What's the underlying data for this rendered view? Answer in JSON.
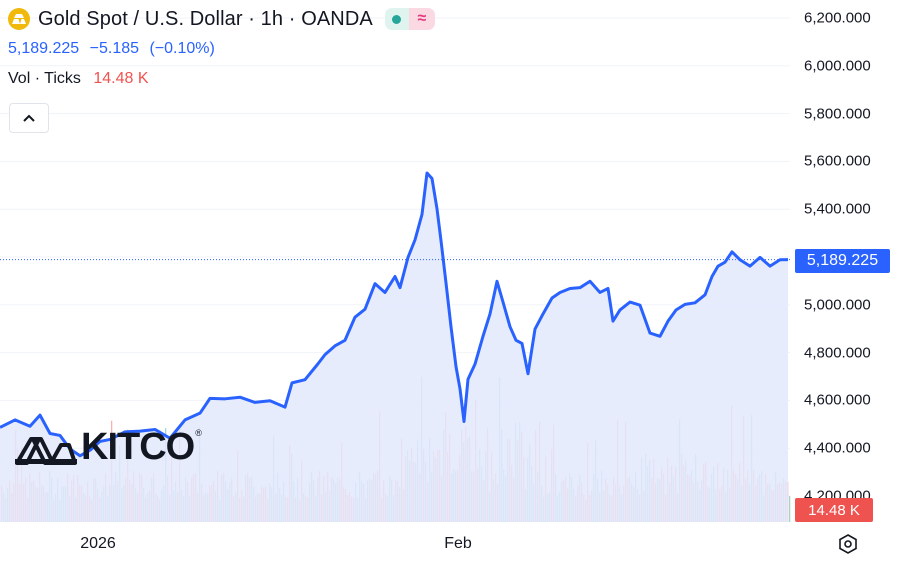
{
  "header": {
    "title": "Gold Spot / U.S. Dollar · 1h · OANDA",
    "last_price": "5,189.225",
    "change": "−5.185",
    "change_pct": "(−0.10%)"
  },
  "volume_legend": {
    "label": "Vol · Ticks",
    "value": "14.48 K"
  },
  "price_axis": {
    "ticks": [
      "6,200.000",
      "6,000.000",
      "5,800.000",
      "5,600.000",
      "5,400.000",
      "5,200.000",
      "5,000.000",
      "4,800.000",
      "4,600.000",
      "4,400.000",
      "4,200.000"
    ],
    "current_price_label": "5,189.225",
    "volume_label": "14.48 K"
  },
  "time_axis": {
    "labels": [
      "2026",
      "Feb"
    ]
  },
  "watermark": {
    "brand": "KITCO",
    "registered": "®"
  },
  "colors": {
    "line": "#2962ff",
    "area_fill": "#e3e9fd",
    "up_volume": "#26a69a",
    "down_volume": "#ef5350",
    "text": "#131722"
  },
  "chart_data": {
    "type": "line",
    "ylim": [
      4200,
      6200
    ],
    "ytick_step": 200,
    "current_price": 5189.225,
    "points": [
      [
        0,
        4487
      ],
      [
        15,
        4510
      ],
      [
        30,
        4500
      ],
      [
        40,
        4530
      ],
      [
        50,
        4470
      ],
      [
        60,
        4445
      ],
      [
        70,
        4405
      ],
      [
        80,
        4360
      ],
      [
        90,
        4400
      ],
      [
        100,
        4420
      ],
      [
        110,
        4445
      ],
      [
        125,
        4460
      ],
      [
        140,
        4480
      ],
      [
        155,
        4470
      ],
      [
        170,
        4450
      ],
      [
        185,
        4510
      ],
      [
        200,
        4555
      ],
      [
        210,
        4600
      ],
      [
        225,
        4615
      ],
      [
        240,
        4605
      ],
      [
        255,
        4600
      ],
      [
        270,
        4590
      ],
      [
        285,
        4580
      ],
      [
        292,
        4665
      ],
      [
        305,
        4695
      ],
      [
        318,
        4745
      ],
      [
        325,
        4800
      ],
      [
        335,
        4820
      ],
      [
        345,
        4860
      ],
      [
        355,
        4940
      ],
      [
        365,
        4990
      ],
      [
        375,
        5080
      ],
      [
        385,
        5060
      ],
      [
        395,
        5110
      ],
      [
        400,
        5080
      ],
      [
        408,
        5190
      ],
      [
        415,
        5280
      ],
      [
        422,
        5370
      ],
      [
        427,
        5560
      ],
      [
        432,
        5520
      ],
      [
        437,
        5410
      ],
      [
        441,
        5260
      ],
      [
        446,
        5100
      ],
      [
        451,
        4900
      ],
      [
        456,
        4750
      ],
      [
        460,
        4640
      ],
      [
        464,
        4520
      ],
      [
        468,
        4680
      ],
      [
        475,
        4760
      ],
      [
        483,
        4860
      ],
      [
        490,
        4970
      ],
      [
        497,
        5090
      ],
      [
        503,
        5020
      ],
      [
        510,
        4900
      ],
      [
        516,
        4860
      ],
      [
        522,
        4830
      ],
      [
        528,
        4720
      ],
      [
        535,
        4890
      ],
      [
        543,
        4970
      ],
      [
        552,
        5020
      ],
      [
        560,
        5060
      ],
      [
        570,
        5060
      ],
      [
        580,
        5080
      ],
      [
        590,
        5090
      ],
      [
        600,
        5060
      ],
      [
        608,
        5060
      ],
      [
        613,
        4940
      ],
      [
        620,
        4970
      ],
      [
        630,
        5020
      ],
      [
        640,
        4990
      ],
      [
        650,
        4890
      ],
      [
        660,
        4860
      ],
      [
        668,
        4940
      ],
      [
        676,
        4970
      ],
      [
        685,
        5010
      ],
      [
        695,
        5000
      ],
      [
        705,
        5050
      ],
      [
        712,
        5110
      ],
      [
        718,
        5170
      ],
      [
        725,
        5170
      ],
      [
        732,
        5230
      ],
      [
        740,
        5180
      ],
      [
        750,
        5170
      ],
      [
        760,
        5190
      ],
      [
        770,
        5170
      ],
      [
        780,
        5180
      ],
      [
        788,
        5189
      ]
    ]
  }
}
